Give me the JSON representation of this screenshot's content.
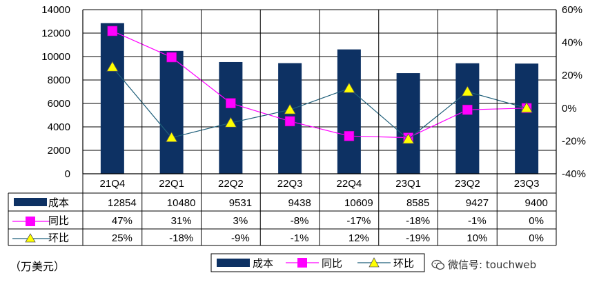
{
  "chart_data": {
    "type": "bar",
    "categories": [
      "21Q4",
      "22Q1",
      "22Q2",
      "22Q3",
      "22Q4",
      "23Q1",
      "23Q2",
      "23Q3"
    ],
    "series": [
      {
        "name": "成本",
        "kind": "bar",
        "axis": "left",
        "color": "#0d3163",
        "values": [
          12854,
          10480,
          9531,
          9438,
          10609,
          8585,
          9427,
          9400
        ]
      },
      {
        "name": "同比",
        "kind": "line",
        "axis": "right",
        "color": "#ff00ff",
        "marker": "square",
        "values": [
          47,
          31,
          3,
          -8,
          -17,
          -18,
          -1,
          0
        ],
        "labels": [
          "47%",
          "31%",
          "3%",
          "-8%",
          "-17%",
          "-18%",
          "-1%",
          "0%"
        ]
      },
      {
        "name": "环比",
        "kind": "line",
        "axis": "right",
        "color": "#1f5f7a",
        "marker": "triangle",
        "marker_color": "#ffff00",
        "values": [
          25,
          -18,
          -9,
          -1,
          12,
          -19,
          10,
          0
        ],
        "labels": [
          "25%",
          "-18%",
          "-9%",
          "-1%",
          "12%",
          "-19%",
          "10%",
          "0%"
        ]
      }
    ],
    "left_axis": {
      "ticks": [
        "0",
        "2000",
        "4000",
        "6000",
        "8000",
        "10000",
        "12000",
        "14000"
      ],
      "ylim": [
        0,
        14000
      ]
    },
    "right_axis": {
      "ticks": [
        "-40%",
        "-20%",
        "0%",
        "20%",
        "40%",
        "60%"
      ],
      "ylim": [
        -40,
        60
      ]
    },
    "grid": true,
    "legend": {
      "position": "bottom-center",
      "items": [
        "成本",
        "同比",
        "环比"
      ]
    },
    "unit_label": "（万美元）"
  },
  "watermark": {
    "text": "微信号: touchweb"
  }
}
